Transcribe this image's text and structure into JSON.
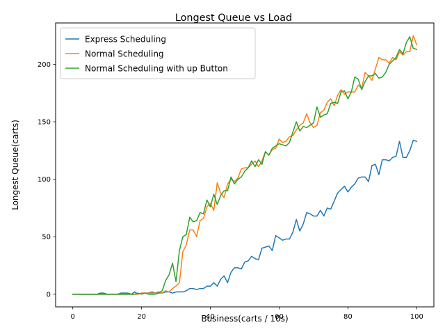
{
  "chart_data": {
    "type": "line",
    "title": "Longest Queue vs Load",
    "xlabel": "Business(carts / 10s)",
    "ylabel": "Longest Queue(carts)",
    "xlim": [
      -5,
      105
    ],
    "ylim": [
      -11,
      236
    ],
    "xticks": [
      0,
      20,
      40,
      60,
      80,
      100
    ],
    "yticks": [
      0,
      50,
      100,
      150,
      200
    ],
    "grid": false,
    "legend_position": "upper-left",
    "series": [
      {
        "name": "Express Scheduling",
        "color": "#1f77b4",
        "x": [
          0,
          1,
          2,
          3,
          4,
          5,
          6,
          7,
          8,
          9,
          10,
          11,
          12,
          13,
          14,
          15,
          16,
          17,
          18,
          19,
          20,
          21,
          22,
          23,
          24,
          25,
          26,
          27,
          28,
          29,
          30,
          31,
          32,
          33,
          34,
          35,
          36,
          37,
          38,
          39,
          40,
          41,
          42,
          43,
          44,
          45,
          46,
          47,
          48,
          49,
          50,
          51,
          52,
          53,
          54,
          55,
          56,
          57,
          58,
          59,
          60,
          61,
          62,
          63,
          64,
          65,
          66,
          67,
          68,
          69,
          70,
          71,
          72,
          73,
          74,
          75,
          76,
          77,
          78,
          79,
          80,
          81,
          82,
          83,
          84,
          85,
          86,
          87,
          88,
          89,
          90,
          91,
          92,
          93,
          94,
          95,
          96,
          97,
          98,
          99,
          100
        ],
        "y": [
          0,
          0,
          0,
          0,
          0,
          0,
          0,
          0,
          1,
          1,
          0,
          0,
          0,
          0,
          1,
          1,
          1,
          0,
          2,
          0,
          1,
          1,
          1,
          2,
          1,
          2,
          1,
          2,
          2,
          1,
          2,
          2,
          2,
          3,
          5,
          5,
          4,
          5,
          5,
          7,
          7,
          10,
          7,
          13,
          16,
          10,
          19,
          23,
          23,
          22,
          28,
          29,
          33,
          31,
          30,
          40,
          41,
          42,
          38,
          51,
          49,
          47,
          48,
          48,
          54,
          65,
          55,
          61,
          71,
          70,
          68,
          68,
          73,
          68,
          75,
          74,
          81,
          88,
          91,
          94,
          89,
          93,
          96,
          101,
          102,
          102,
          98,
          112,
          113,
          104,
          117,
          117,
          116,
          119,
          120,
          133,
          119,
          119,
          125,
          134,
          133
        ]
      },
      {
        "name": "Normal Scheduling",
        "color": "#ff7f0e",
        "x": [
          0,
          1,
          2,
          3,
          4,
          5,
          6,
          7,
          8,
          9,
          10,
          11,
          12,
          13,
          14,
          15,
          16,
          17,
          18,
          19,
          20,
          21,
          22,
          23,
          24,
          25,
          26,
          27,
          28,
          29,
          30,
          31,
          32,
          33,
          34,
          35,
          36,
          37,
          38,
          39,
          40,
          41,
          42,
          43,
          44,
          45,
          46,
          47,
          48,
          49,
          50,
          51,
          52,
          53,
          54,
          55,
          56,
          57,
          58,
          59,
          60,
          61,
          62,
          63,
          64,
          65,
          66,
          67,
          68,
          69,
          70,
          71,
          72,
          73,
          74,
          75,
          76,
          77,
          78,
          79,
          80,
          81,
          82,
          83,
          84,
          85,
          86,
          87,
          88,
          89,
          90,
          91,
          92,
          93,
          94,
          95,
          96,
          97,
          98,
          99,
          100
        ],
        "y": [
          0,
          0,
          0,
          0,
          0,
          0,
          0,
          0,
          0,
          0,
          0,
          0,
          0,
          0,
          0,
          0,
          0,
          0,
          0,
          0,
          1,
          1,
          1,
          1,
          1,
          1,
          1,
          3,
          2,
          5,
          7,
          10,
          37,
          43,
          56,
          56,
          50,
          64,
          66,
          76,
          79,
          73,
          97,
          88,
          84,
          96,
          100,
          98,
          101,
          109,
          110,
          110,
          113,
          116,
          111,
          116,
          124,
          121,
          126,
          127,
          135,
          132,
          133,
          137,
          138,
          143,
          147,
          149,
          157,
          149,
          145,
          147,
          158,
          160,
          167,
          170,
          164,
          173,
          178,
          174,
          176,
          176,
          176,
          182,
          179,
          193,
          190,
          186,
          196,
          206,
          204,
          204,
          201,
          206,
          204,
          211,
          208,
          211,
          211,
          225,
          217
        ]
      },
      {
        "name": "Normal Scheduling with up Button",
        "color": "#2ca02c",
        "x": [
          0,
          1,
          2,
          3,
          4,
          5,
          6,
          7,
          8,
          9,
          10,
          11,
          12,
          13,
          14,
          15,
          16,
          17,
          18,
          19,
          20,
          21,
          22,
          23,
          24,
          25,
          26,
          27,
          28,
          29,
          30,
          31,
          32,
          33,
          34,
          35,
          36,
          37,
          38,
          39,
          40,
          41,
          42,
          43,
          44,
          45,
          46,
          47,
          48,
          49,
          50,
          51,
          52,
          53,
          54,
          55,
          56,
          57,
          58,
          59,
          60,
          61,
          62,
          63,
          64,
          65,
          66,
          67,
          68,
          69,
          70,
          71,
          72,
          73,
          74,
          75,
          76,
          77,
          78,
          79,
          80,
          81,
          82,
          83,
          84,
          85,
          86,
          87,
          88,
          89,
          90,
          91,
          92,
          93,
          94,
          95,
          96,
          97,
          98,
          99,
          100
        ],
        "y": [
          0,
          0,
          0,
          0,
          0,
          0,
          0,
          0,
          0,
          0,
          0,
          0,
          0,
          0,
          0,
          0,
          0,
          0,
          0,
          1,
          0,
          1,
          0,
          0,
          0,
          1,
          3,
          12,
          17,
          27,
          11,
          38,
          50,
          52,
          67,
          63,
          64,
          71,
          70,
          82,
          76,
          87,
          78,
          86,
          90,
          90,
          102,
          96,
          100,
          102,
          107,
          110,
          116,
          111,
          117,
          113,
          124,
          121,
          127,
          129,
          131,
          130,
          129,
          132,
          141,
          150,
          142,
          146,
          145,
          147,
          149,
          163,
          154,
          156,
          157,
          166,
          167,
          166,
          176,
          177,
          170,
          176,
          189,
          187,
          178,
          185,
          190,
          190,
          192,
          188,
          189,
          193,
          200,
          203,
          206,
          213,
          209,
          219,
          224,
          214,
          213
        ]
      }
    ]
  }
}
